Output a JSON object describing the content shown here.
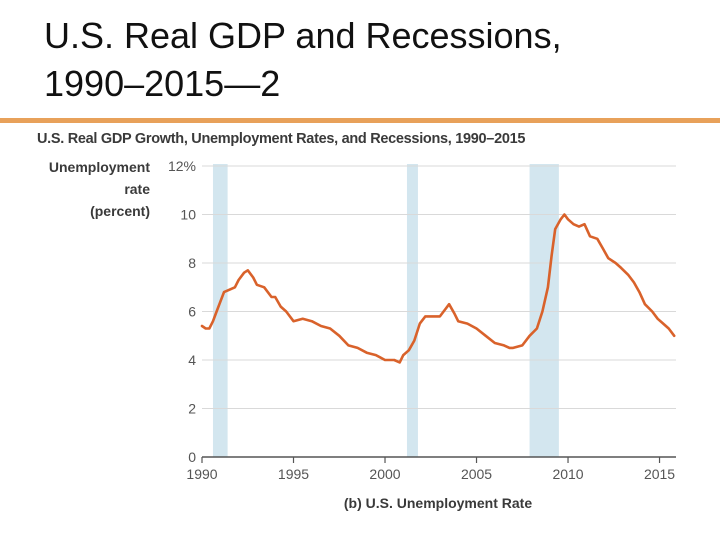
{
  "slide": {
    "title_line1": "U.S. Real GDP and Recessions,",
    "title_line2": "1990–2015—2",
    "accent_color": "#E8A15A"
  },
  "chart_data": {
    "type": "line",
    "title": "U.S. Real GDP Growth, Unemployment Rates, and Recessions, 1990–2015",
    "ylabel_lines": [
      "Unemployment",
      "rate",
      "(percent)"
    ],
    "xlabel": "(b) U.S. Unemployment Rate",
    "x_ticks": [
      1990,
      1995,
      2000,
      2005,
      2010,
      2015
    ],
    "y_ticks": [
      0,
      2,
      4,
      6,
      8,
      10,
      12
    ],
    "y_tick_labels": [
      "0",
      "2",
      "4",
      "6",
      "8",
      "10",
      "12%"
    ],
    "xlim": [
      1990,
      2015.9
    ],
    "ylim": [
      0,
      12
    ],
    "grid": true,
    "line_color": "#D9622B",
    "recession_color": "#D3E6EF",
    "recessions": [
      {
        "start": 1990.6,
        "end": 1991.4
      },
      {
        "start": 2001.2,
        "end": 2001.8
      },
      {
        "start": 2007.9,
        "end": 2009.5
      }
    ],
    "series": [
      {
        "values": [
          [
            1990.0,
            5.4
          ],
          [
            1990.2,
            5.3
          ],
          [
            1990.4,
            5.3
          ],
          [
            1990.6,
            5.6
          ],
          [
            1990.8,
            6.0
          ],
          [
            1991.0,
            6.4
          ],
          [
            1991.2,
            6.8
          ],
          [
            1991.5,
            6.9
          ],
          [
            1991.8,
            7.0
          ],
          [
            1992.0,
            7.3
          ],
          [
            1992.3,
            7.6
          ],
          [
            1992.5,
            7.7
          ],
          [
            1992.8,
            7.4
          ],
          [
            1993.0,
            7.1
          ],
          [
            1993.4,
            7.0
          ],
          [
            1993.8,
            6.6
          ],
          [
            1994.0,
            6.6
          ],
          [
            1994.3,
            6.2
          ],
          [
            1994.6,
            6.0
          ],
          [
            1995.0,
            5.6
          ],
          [
            1995.5,
            5.7
          ],
          [
            1996.0,
            5.6
          ],
          [
            1996.5,
            5.4
          ],
          [
            1997.0,
            5.3
          ],
          [
            1997.5,
            5.0
          ],
          [
            1998.0,
            4.6
          ],
          [
            1998.5,
            4.5
          ],
          [
            1999.0,
            4.3
          ],
          [
            1999.5,
            4.2
          ],
          [
            2000.0,
            4.0
          ],
          [
            2000.5,
            4.0
          ],
          [
            2000.8,
            3.9
          ],
          [
            2001.0,
            4.2
          ],
          [
            2001.3,
            4.4
          ],
          [
            2001.6,
            4.8
          ],
          [
            2001.9,
            5.5
          ],
          [
            2002.2,
            5.8
          ],
          [
            2002.6,
            5.8
          ],
          [
            2003.0,
            5.8
          ],
          [
            2003.3,
            6.1
          ],
          [
            2003.5,
            6.3
          ],
          [
            2003.8,
            5.9
          ],
          [
            2004.0,
            5.6
          ],
          [
            2004.5,
            5.5
          ],
          [
            2005.0,
            5.3
          ],
          [
            2005.5,
            5.0
          ],
          [
            2006.0,
            4.7
          ],
          [
            2006.5,
            4.6
          ],
          [
            2006.8,
            4.5
          ],
          [
            2007.0,
            4.5
          ],
          [
            2007.5,
            4.6
          ],
          [
            2007.9,
            5.0
          ],
          [
            2008.3,
            5.3
          ],
          [
            2008.6,
            6.0
          ],
          [
            2008.9,
            7.0
          ],
          [
            2009.1,
            8.3
          ],
          [
            2009.3,
            9.4
          ],
          [
            2009.6,
            9.8
          ],
          [
            2009.8,
            10.0
          ],
          [
            2010.0,
            9.8
          ],
          [
            2010.3,
            9.6
          ],
          [
            2010.6,
            9.5
          ],
          [
            2010.9,
            9.6
          ],
          [
            2011.2,
            9.1
          ],
          [
            2011.6,
            9.0
          ],
          [
            2011.9,
            8.6
          ],
          [
            2012.2,
            8.2
          ],
          [
            2012.6,
            8.0
          ],
          [
            2012.9,
            7.8
          ],
          [
            2013.3,
            7.5
          ],
          [
            2013.6,
            7.2
          ],
          [
            2013.9,
            6.8
          ],
          [
            2014.2,
            6.3
          ],
          [
            2014.6,
            6.0
          ],
          [
            2014.9,
            5.7
          ],
          [
            2015.2,
            5.5
          ],
          [
            2015.5,
            5.3
          ],
          [
            2015.8,
            5.0
          ]
        ]
      }
    ]
  }
}
